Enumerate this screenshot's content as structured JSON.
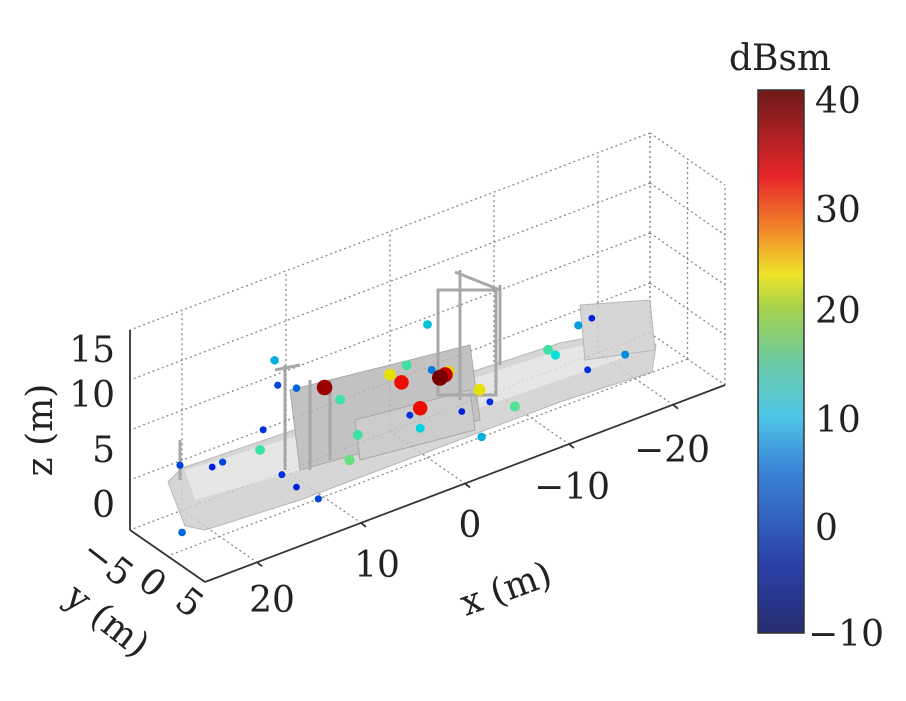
{
  "chart_data": {
    "type": "scatter",
    "subtype": "3d-scatter-over-model",
    "xlabel": "x (m)",
    "ylabel": "y (m)",
    "zlabel": "z (m)",
    "x_ticks": [
      "20",
      "10",
      "0",
      "−10",
      "−20"
    ],
    "y_ticks": [
      "−5",
      "0",
      "5"
    ],
    "z_ticks": [
      "0",
      "5",
      "10",
      "15"
    ],
    "xlim": [
      -25,
      25
    ],
    "ylim": [
      -5,
      5
    ],
    "zlim": [
      0,
      20
    ],
    "grid": true,
    "colorbar": {
      "title": "dBsm",
      "ticks": [
        "40",
        "30",
        "20",
        "10",
        "0",
        "−10"
      ],
      "range": [
        -10,
        40
      ],
      "colormap": "jet"
    },
    "model_color": "#c8c8c8",
    "points": [
      [
        23.8,
        0,
        8.6,
        0
      ],
      [
        23.6,
        0,
        1.8,
        2
      ],
      [
        20.7,
        0,
        7.2,
        -2
      ],
      [
        19.7,
        0,
        7.3,
        0
      ],
      [
        16.1,
        0,
        7.1,
        12
      ],
      [
        15.8,
        0,
        9.0,
        -1
      ],
      [
        14.7,
        0,
        15.5,
        6
      ],
      [
        14.4,
        0,
        12.9,
        0
      ],
      [
        14.0,
        0,
        3.8,
        -1
      ],
      [
        12.6,
        0,
        11.9,
        2
      ],
      [
        12.6,
        0,
        2.0,
        -2
      ],
      [
        10.5,
        0,
        0,
        0
      ],
      [
        9.9,
        0,
        10.9,
        38
      ],
      [
        8.4,
        0,
        9.1,
        12
      ],
      [
        7.5,
        0,
        2.7,
        14
      ],
      [
        6.7,
        0,
        4.9,
        12
      ],
      [
        3.6,
        0,
        9.7,
        21
      ],
      [
        2.5,
        0,
        8.5,
        33
      ],
      [
        2.0,
        0,
        10.0,
        12
      ],
      [
        0.7,
        0,
        5.2,
        33
      ],
      [
        1.7,
        0,
        4.9,
        -1
      ],
      [
        0.7,
        0,
        3.2,
        8
      ],
      [
        0,
        0,
        13.3,
        7
      ],
      [
        -0.4,
        0,
        8.6,
        3
      ],
      [
        -1.7,
        0,
        7.6,
        36
      ],
      [
        -1.2,
        0,
        7.5,
        40
      ],
      [
        -2.0,
        0,
        7.8,
        22
      ],
      [
        -3.3,
        0,
        3.3,
        -2
      ],
      [
        -5.0,
        0,
        4.8,
        21
      ],
      [
        -5.2,
        0,
        0,
        6
      ],
      [
        -6.0,
        0,
        3.2,
        -1
      ],
      [
        -8.4,
        0,
        1.8,
        13
      ],
      [
        -14.5,
        0,
        7.5,
        5
      ],
      [
        -15.8,
        0,
        7.7,
        -2
      ],
      [
        -11.6,
        0,
        6.2,
        12
      ],
      [
        -12.3,
        0,
        5.4,
        9
      ],
      [
        -19.0,
        0,
        2.8,
        4
      ],
      [
        -15.4,
        0,
        2.7,
        -1
      ]
    ]
  }
}
